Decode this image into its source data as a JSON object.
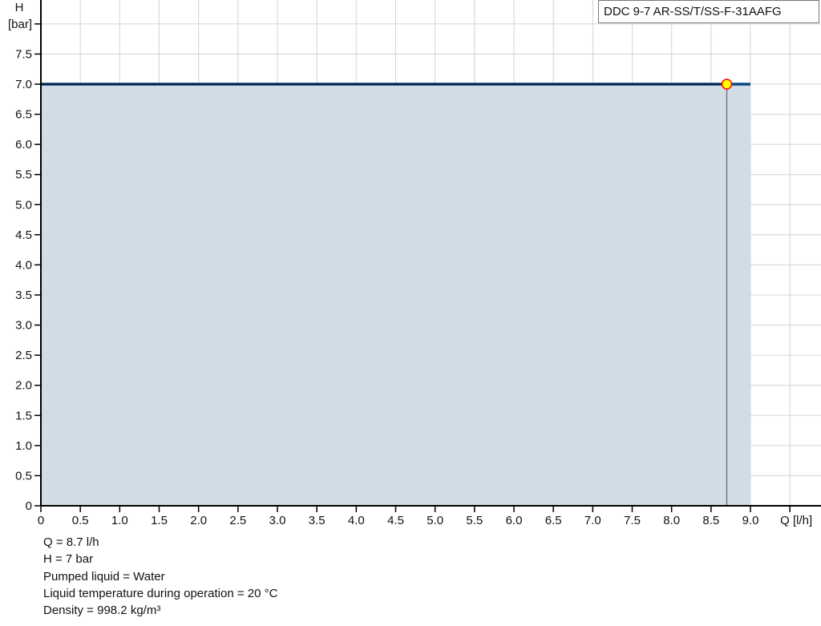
{
  "chart_data": {
    "type": "area",
    "title": "",
    "legend": "DDC 9-7 AR-SS/T/SS-F-31AAFG",
    "legend_position": "top-right",
    "xlabel": "Q [l/h]",
    "ylabel_line1": "H",
    "ylabel_line2": "[bar]",
    "xlim": [
      0,
      9.5
    ],
    "ylim": [
      0,
      8.0
    ],
    "grid": true,
    "x_ticks": [
      "0",
      "0.5",
      "1.0",
      "1.5",
      "2.0",
      "2.5",
      "3.0",
      "3.5",
      "4.0",
      "4.5",
      "5.0",
      "5.5",
      "6.0",
      "6.5",
      "7.0",
      "7.5",
      "8.0",
      "8.5",
      "9.0"
    ],
    "y_ticks": [
      "0",
      "0.5",
      "1.0",
      "1.5",
      "2.0",
      "2.5",
      "3.0",
      "3.5",
      "4.0",
      "4.5",
      "5.0",
      "5.5",
      "6.0",
      "6.5",
      "7.0",
      "7.5"
    ],
    "series": [
      {
        "x": [
          0,
          9.0
        ],
        "y": [
          7.0,
          7.0
        ],
        "color": "#0b4a82",
        "fill": "#d0dce6"
      }
    ],
    "duty_point": {
      "x": 8.7,
      "y": 7.0,
      "color": "#ffff00",
      "stroke": "#ff0000"
    }
  },
  "info": {
    "q": "Q = 8.7 l/h",
    "h": "H = 7 bar",
    "liquid": "Pumped liquid = Water",
    "temp": "Liquid temperature during operation = 20 °C",
    "density": "Density = 998.2 kg/m³"
  }
}
